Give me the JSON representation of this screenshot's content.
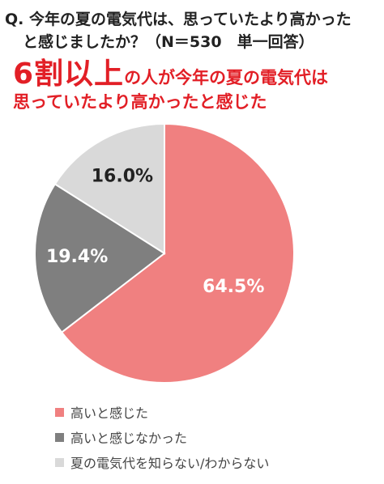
{
  "question": {
    "line1": "Q. 今年の夏の電気代は、思っていたより高かった",
    "line2": "と感じましたか？（N＝530　単一回答）"
  },
  "headline": {
    "big": "6割以上",
    "rest": "の人が今年の夏の電気代は",
    "line2": "思っていたより高かったと感じた"
  },
  "colors": {
    "accent": "#e21f26",
    "slice_high": "#f08080",
    "slice_not_high": "#7f7f7f",
    "slice_unknown": "#d9d9d9"
  },
  "chart_data": {
    "type": "pie",
    "slices": [
      {
        "label": "高いと感じた",
        "value": 64.5,
        "display": "64.5%",
        "color": "#f08080"
      },
      {
        "label": "高いと感じなかった",
        "value": 19.4,
        "display": "19.4%",
        "color": "#7f7f7f"
      },
      {
        "label": "夏の電気代を知らない/わからない",
        "value": 16.0,
        "display": "16.0%",
        "color": "#d9d9d9"
      }
    ],
    "start": "top, clockwise",
    "legend_position": "bottom"
  }
}
